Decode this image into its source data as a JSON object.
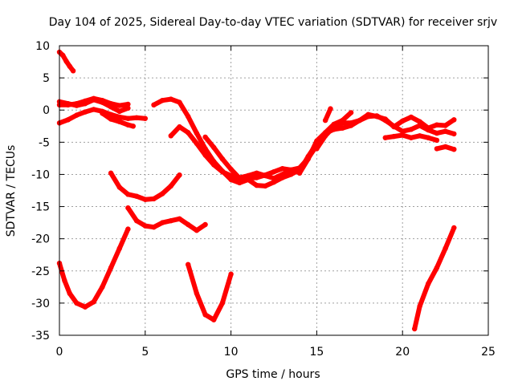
{
  "chart_data": {
    "type": "scatter",
    "title": "Day 104 of 2025, Sidereal Day-to-day VTEC variation (SDTVAR) for receiver srjv",
    "xlabel": "GPS time / hours",
    "ylabel": "SDTVAR / TECUs",
    "xlim": [
      0,
      25
    ],
    "ylim": [
      -35,
      10
    ],
    "xticks": [
      0,
      5,
      10,
      15,
      20,
      25
    ],
    "yticks": [
      10,
      5,
      0,
      -5,
      -10,
      -15,
      -20,
      -25,
      -30,
      -35
    ],
    "grid": true,
    "marker_color": "#ff0000",
    "series": [
      {
        "name": "s01",
        "x": [
          0.0,
          0.2,
          0.4,
          0.6,
          0.8
        ],
        "y": [
          9.0,
          8.5,
          7.6,
          6.8,
          6.1
        ]
      },
      {
        "name": "s02",
        "x": [
          0.0,
          0.5,
          1.0,
          1.5,
          2.0,
          2.5,
          3.0,
          3.5,
          4.0
        ],
        "y": [
          0.8,
          0.8,
          1.0,
          1.4,
          1.8,
          1.5,
          1.0,
          0.7,
          0.9
        ]
      },
      {
        "name": "s03",
        "x": [
          0.0,
          0.5,
          1.0,
          1.5,
          2.0,
          2.5,
          3.0,
          3.5,
          4.0
        ],
        "y": [
          1.3,
          1.0,
          0.7,
          1.0,
          1.6,
          1.2,
          0.5,
          -0.2,
          0.3
        ]
      },
      {
        "name": "s04",
        "x": [
          0.0,
          0.5,
          1.0,
          1.5,
          2.0,
          2.5,
          3.0,
          3.5,
          4.0,
          4.5,
          5.0
        ],
        "y": [
          -2.0,
          -1.5,
          -0.8,
          -0.3,
          0.1,
          -0.2,
          -0.7,
          -1.1,
          -1.3,
          -1.2,
          -1.3
        ]
      },
      {
        "name": "s05",
        "x": [
          2.5,
          3.0,
          3.5,
          4.0,
          4.3
        ],
        "y": [
          -0.5,
          -1.4,
          -1.8,
          -2.3,
          -2.5
        ]
      },
      {
        "name": "s06",
        "x": [
          0.0,
          0.3,
          0.6,
          1.0,
          1.5,
          2.0,
          2.5,
          3.0,
          3.5,
          4.0
        ],
        "y": [
          -23.8,
          -26.5,
          -28.5,
          -30.0,
          -30.6,
          -29.8,
          -27.5,
          -24.5,
          -21.5,
          -18.5
        ]
      },
      {
        "name": "s07",
        "x": [
          3.0,
          3.5,
          4.0,
          4.5,
          5.0,
          5.5,
          6.0,
          6.5,
          7.0
        ],
        "y": [
          -9.8,
          -12.0,
          -13.1,
          -13.4,
          -13.9,
          -13.8,
          -13.0,
          -11.8,
          -10.1
        ]
      },
      {
        "name": "s08",
        "x": [
          4.0,
          4.5,
          5.0,
          5.5,
          6.0,
          6.5,
          7.0,
          7.5,
          8.0,
          8.5
        ],
        "y": [
          -15.2,
          -17.2,
          -18.0,
          -18.2,
          -17.5,
          -17.2,
          -16.9,
          -17.8,
          -18.7,
          -17.8
        ]
      },
      {
        "name": "s09",
        "x": [
          5.5,
          6.0,
          6.5,
          7.0,
          7.5,
          8.0,
          8.5,
          9.0,
          9.5,
          10.0,
          10.5,
          11.0,
          11.5,
          12.0,
          12.5,
          13.0,
          13.5,
          14.0
        ],
        "y": [
          0.8,
          1.5,
          1.7,
          1.2,
          -1.0,
          -3.6,
          -6.0,
          -8.0,
          -9.5,
          -10.8,
          -11.3,
          -10.8,
          -11.7,
          -11.8,
          -11.2,
          -10.5,
          -10.0,
          -9.3
        ]
      },
      {
        "name": "s10",
        "x": [
          6.5,
          7.0,
          7.5,
          8.0,
          8.5,
          9.0,
          9.5,
          10.0,
          10.5,
          11.0,
          11.5,
          12.0,
          12.5,
          13.0,
          13.5,
          14.0
        ],
        "y": [
          -4.0,
          -2.6,
          -3.5,
          -5.2,
          -7.0,
          -8.5,
          -9.6,
          -10.2,
          -10.5,
          -10.2,
          -9.8,
          -10.2,
          -10.6,
          -10.0,
          -9.4,
          -9.6
        ]
      },
      {
        "name": "s11",
        "x": [
          8.5,
          9.0,
          9.5,
          10.0,
          10.5,
          11.0,
          11.5,
          12.0,
          12.5,
          13.0,
          13.5,
          14.0,
          14.5,
          15.0
        ],
        "y": [
          -4.2,
          -5.8,
          -7.6,
          -9.2,
          -10.6,
          -10.6,
          -10.5,
          -10.1,
          -9.6,
          -9.1,
          -9.3,
          -9.0,
          -7.5,
          -5.5
        ]
      },
      {
        "name": "s12",
        "x": [
          7.5,
          8.0,
          8.5,
          9.0,
          9.5,
          10.0
        ],
        "y": [
          -24.0,
          -28.5,
          -31.8,
          -32.6,
          -30.0,
          -25.5
        ]
      },
      {
        "name": "s13",
        "x": [
          14.0,
          14.5,
          15.0,
          15.5,
          16.0,
          16.5,
          17.0
        ],
        "y": [
          -9.8,
          -7.6,
          -4.8,
          -3.5,
          -2.2,
          -1.6,
          -0.4
        ]
      },
      {
        "name": "s14",
        "x": [
          14.0,
          14.5,
          15.0,
          15.5,
          16.0,
          16.5,
          17.0,
          17.5,
          18.0,
          18.5,
          19.0,
          19.5,
          20.0,
          20.5,
          21.0,
          21.5,
          22.0,
          22.5,
          23.0
        ],
        "y": [
          -9.5,
          -7.2,
          -5.2,
          -3.6,
          -3.0,
          -2.8,
          -2.4,
          -1.6,
          -0.7,
          -1.0,
          -1.4,
          -2.6,
          -1.7,
          -1.1,
          -1.8,
          -2.8,
          -2.3,
          -2.4,
          -1.5
        ]
      },
      {
        "name": "s15",
        "x": [
          15.0,
          15.5,
          16.0,
          16.5,
          17.0,
          17.5,
          18.0,
          18.5,
          19.0,
          19.5,
          20.0,
          20.5,
          21.0,
          21.5,
          22.0,
          22.5,
          23.0
        ],
        "y": [
          -6.0,
          -4.0,
          -2.6,
          -2.0,
          -2.0,
          -1.6,
          -1.0,
          -0.9,
          -1.6,
          -2.5,
          -3.3,
          -3.0,
          -2.4,
          -3.1,
          -3.6,
          -3.3,
          -3.7
        ]
      },
      {
        "name": "s16",
        "x": [
          15.5,
          15.8
        ],
        "y": [
          -1.6,
          0.2
        ]
      },
      {
        "name": "s17",
        "x": [
          19.0,
          19.5,
          20.0,
          20.5,
          21.0,
          21.5,
          22.0
        ],
        "y": [
          -4.3,
          -4.1,
          -3.9,
          -4.3,
          -4.0,
          -4.3,
          -4.7
        ]
      },
      {
        "name": "s18",
        "x": [
          22.0,
          22.5,
          23.0
        ],
        "y": [
          -6.0,
          -5.7,
          -6.1
        ]
      },
      {
        "name": "s19",
        "x": [
          20.7,
          21.0,
          21.5,
          22.0,
          22.5,
          23.0
        ],
        "y": [
          -34.0,
          -30.5,
          -27.0,
          -24.5,
          -21.5,
          -18.3
        ]
      }
    ]
  }
}
